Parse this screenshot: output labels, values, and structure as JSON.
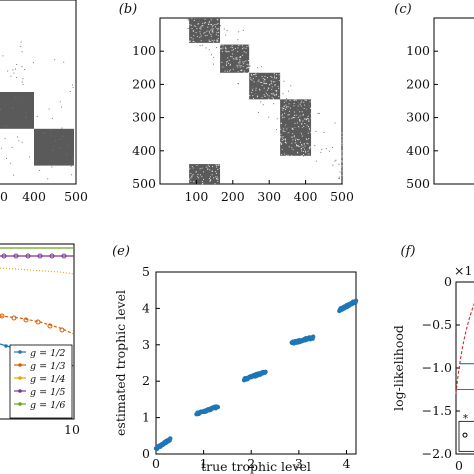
{
  "chart_data": [
    {
      "panel": "a",
      "type": "heatmap",
      "panel_label": "",
      "ticks_x": [
        "0",
        "400",
        "500"
      ],
      "ylim": [
        500,
        0
      ],
      "blocks": [
        [
          250,
          350
        ],
        [
          350,
          450
        ]
      ]
    },
    {
      "panel": "b",
      "type": "heatmap",
      "panel_label": "(b)",
      "ticks_x": [
        "100",
        "200",
        "300",
        "400",
        "500"
      ],
      "ticks_y": [
        "100",
        "200",
        "300",
        "400",
        "500"
      ],
      "xlim": [
        0,
        500
      ],
      "ylim": [
        500,
        0
      ],
      "blocks": [
        [
          0,
          75
        ],
        [
          80,
          165
        ],
        [
          165,
          245
        ],
        [
          245,
          330
        ],
        [
          330,
          415
        ]
      ],
      "wrap_block": {
        "x": [
          80,
          165
        ],
        "y": [
          440,
          500
        ]
      }
    },
    {
      "panel": "c",
      "type": "heatmap",
      "panel_label": "(c)",
      "ticks_y": [
        "100",
        "200",
        "300",
        "400",
        "500"
      ]
    },
    {
      "panel": "d",
      "type": "line",
      "panel_label": "",
      "ticks_x": [
        "10"
      ],
      "legend": [
        "g = 1/2",
        "g = 1/3",
        "g = 1/4",
        "g = 1/5",
        "g = 1/6"
      ],
      "series_colors": [
        "#1f77b4",
        "#d95f02",
        "#e6a800",
        "#7b3294",
        "#66a61e"
      ]
    },
    {
      "panel": "e",
      "type": "scatter",
      "panel_label": "(e)",
      "title": "",
      "xlabel": "true trophic level",
      "ylabel": "estimated trophic level",
      "xlim": [
        0,
        4.2
      ],
      "ylim": [
        0,
        5
      ],
      "ticks_x": [
        "0",
        "1",
        "2",
        "3",
        "4"
      ],
      "ticks_y": [
        "0",
        "1",
        "2",
        "3",
        "4",
        "5"
      ],
      "clusters": [
        {
          "x": [
            0.0,
            0.3
          ],
          "y": [
            0.15,
            0.4
          ]
        },
        {
          "x": [
            0.85,
            1.3
          ],
          "y": [
            1.1,
            1.3
          ]
        },
        {
          "x": [
            1.85,
            2.3
          ],
          "y": [
            2.05,
            2.25
          ]
        },
        {
          "x": [
            2.85,
            3.3
          ],
          "y": [
            3.05,
            3.2
          ]
        },
        {
          "x": [
            3.85,
            4.2
          ],
          "y": [
            3.95,
            4.2
          ]
        }
      ],
      "point_color": "#1f77b4"
    },
    {
      "panel": "f",
      "type": "line",
      "panel_label": "(f)",
      "ylabel": "log-likelihood",
      "multiplier": "×1",
      "ylim": [
        -2.0,
        0
      ],
      "ticks_y": [
        "0",
        "−0.5",
        "−1.0",
        "−1.5",
        "−2.0"
      ],
      "ticks_x": [
        "0"
      ]
    }
  ]
}
